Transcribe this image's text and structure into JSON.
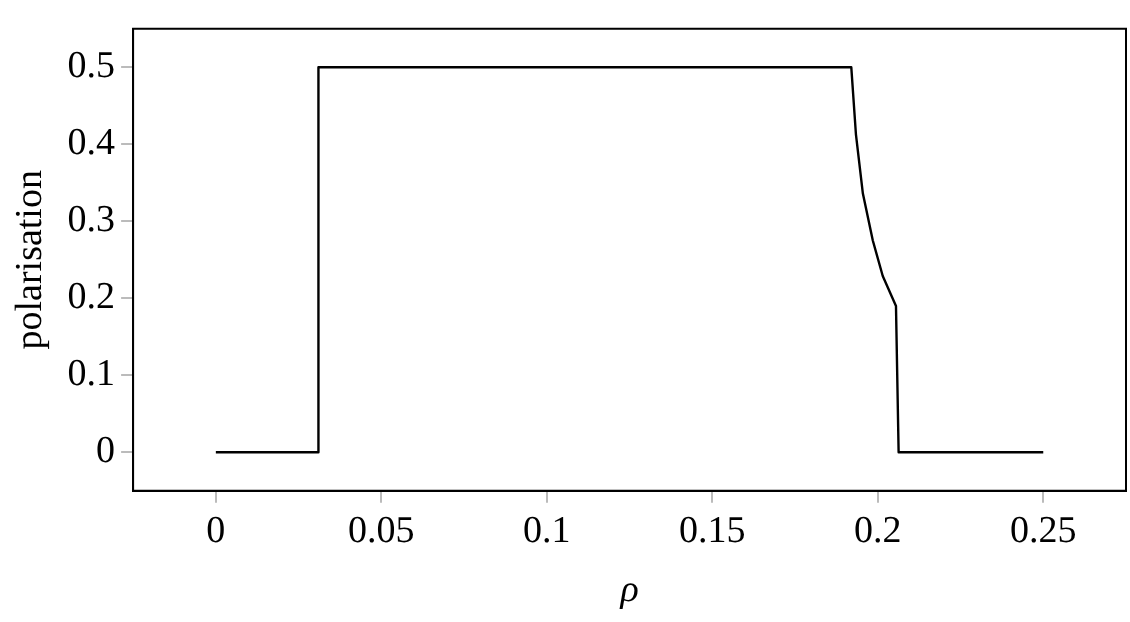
{
  "chart_data": {
    "type": "line",
    "xlabel": "ρ",
    "ylabel": "polarisation",
    "series": [
      {
        "color": "#000000",
        "x": [
          0,
          0.031,
          0.031,
          0.192,
          0.1934,
          0.1955,
          0.1985,
          0.2015,
          0.2055,
          0.2063,
          0.25
        ],
        "values": [
          0,
          0,
          0.5,
          0.5,
          0.413,
          0.336,
          0.275,
          0.229,
          0.19,
          0,
          0
        ]
      }
    ],
    "xlim": [
      -0.025,
      0.275
    ],
    "xticks": [
      0,
      0.05,
      0.1,
      0.15,
      0.2,
      0.25
    ],
    "ylim": [
      -0.05,
      0.55
    ],
    "yticks": [
      0,
      0.1,
      0.2,
      0.3,
      0.4,
      0.5
    ],
    "grid": false,
    "legend": false,
    "marker": "none",
    "line_style": "solid"
  }
}
